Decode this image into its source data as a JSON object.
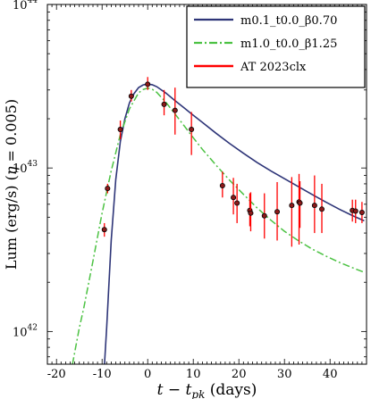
{
  "chart_data": {
    "type": "scatter",
    "xlabel": "t − t_pk (days)",
    "ylabel": "Lum (erg/s) (η = 0.005)",
    "xlim": [
      -22,
      48
    ],
    "ylim_log10": [
      41.8,
      44.0
    ],
    "log_y": true,
    "x_ticks": [
      -20,
      -10,
      0,
      10,
      20,
      30,
      40
    ],
    "y_ticks": [
      {
        "exp": 42,
        "label": "10",
        "sup": "42"
      },
      {
        "exp": 43,
        "label": "10",
        "sup": "43"
      },
      {
        "exp": 44,
        "label": "10",
        "sup": "44"
      }
    ],
    "legend_position": "top-right",
    "series": [
      {
        "name": "m0.1_t0.0_β0.70",
        "kind": "line",
        "style": "solid",
        "color": "#2e3578",
        "x": [
          -9.6,
          -9.0,
          -8.0,
          -7.0,
          -6.0,
          -5.0,
          -4.0,
          -3.0,
          -2.0,
          -1.0,
          0.0,
          1.0,
          2.0,
          4.0,
          6.0,
          8.0,
          10.0,
          12.0,
          15.0,
          18.0,
          21.0,
          24.0,
          27.0,
          30.0,
          33.0,
          36.0,
          39.0,
          42.0,
          45.0,
          47.5
        ],
        "y": [
          5.5e+41,
          1.05e+42,
          3.6e+42,
          8.5e+42,
          1.45e+43,
          2e+43,
          2.5e+43,
          2.85e+43,
          3.1e+43,
          3.22e+43,
          3.26e+43,
          3.23e+43,
          3.14e+43,
          2.87e+43,
          2.58e+43,
          2.33e+43,
          2.1e+43,
          1.9e+43,
          1.63e+43,
          1.41e+43,
          1.23e+43,
          1.08e+43,
          9.6e+42,
          8.6e+42,
          7.7e+42,
          6.9e+42,
          6.2e+42,
          5.6e+42,
          5.1e+42,
          4.75e+42
        ]
      },
      {
        "name": "m1.0_t0.0_β1.25",
        "kind": "line",
        "style": "dashdot",
        "color": "#4cc243",
        "x": [
          -16.5,
          -15.0,
          -14.0,
          -12.0,
          -10.0,
          -8.0,
          -6.0,
          -4.0,
          -2.0,
          -1.0,
          0.0,
          1.0,
          2.0,
          4.0,
          6.0,
          8.0,
          10.0,
          12.0,
          15.0,
          18.0,
          21.0,
          24.0,
          27.0,
          30.0,
          33.0,
          36.0,
          39.0,
          42.0,
          45.0,
          47.5
        ],
        "y": [
          6.3e+41,
          1.05e+42,
          1.4e+42,
          2.7e+42,
          5.3e+42,
          9.6e+42,
          1.6e+43,
          2.3e+43,
          2.88e+43,
          3.02e+43,
          3.08e+43,
          3.03e+43,
          2.9e+43,
          2.52e+43,
          2.14e+43,
          1.81e+43,
          1.53e+43,
          1.3e+43,
          1.04e+43,
          8.4e+42,
          6.9e+42,
          5.7e+42,
          4.8e+42,
          4.1e+42,
          3.6e+42,
          3.2e+42,
          2.9e+42,
          2.65e+42,
          2.45e+42,
          2.3e+42
        ]
      },
      {
        "name": "AT 2023clx",
        "kind": "points",
        "color": "#ff0000",
        "marker_color": "#8b1a1a",
        "points": [
          {
            "x": -9.5,
            "y": 4.2e+42,
            "lo": 3.8e+42,
            "hi": 4.6e+42
          },
          {
            "x": -8.8,
            "y": 7.5e+42,
            "lo": 7e+42,
            "hi": 8e+42
          },
          {
            "x": -6.0,
            "y": 1.72e+43,
            "lo": 1.5e+43,
            "hi": 1.95e+43
          },
          {
            "x": -3.6,
            "y": 2.75e+43,
            "lo": 2.55e+43,
            "hi": 3e+43
          },
          {
            "x": 0.0,
            "y": 3.25e+43,
            "lo": 3e+43,
            "hi": 3.6e+43
          },
          {
            "x": 3.6,
            "y": 2.45e+43,
            "lo": 2.1e+43,
            "hi": 3e+43
          },
          {
            "x": 6.0,
            "y": 2.25e+43,
            "lo": 1.6e+43,
            "hi": 3.1e+43
          },
          {
            "x": 9.6,
            "y": 1.72e+43,
            "lo": 1.2e+43,
            "hi": 2.2e+43
          },
          {
            "x": 16.4,
            "y": 7.8e+42,
            "lo": 6.6e+42,
            "hi": 9.5e+42
          },
          {
            "x": 18.8,
            "y": 6.6e+42,
            "lo": 5.2e+42,
            "hi": 8.7e+42
          },
          {
            "x": 19.6,
            "y": 6.1e+42,
            "lo": 4.6e+42,
            "hi": 8e+42
          },
          {
            "x": 22.4,
            "y": 5.5e+42,
            "lo": 4.4e+42,
            "hi": 7e+42
          },
          {
            "x": 22.6,
            "y": 5.3e+42,
            "lo": 4.1e+42,
            "hi": 7.1e+42
          },
          {
            "x": 25.6,
            "y": 5.1e+42,
            "lo": 3.7e+42,
            "hi": 7e+42
          },
          {
            "x": 28.4,
            "y": 5.4e+42,
            "lo": 3.6e+42,
            "hi": 8.2e+42
          },
          {
            "x": 31.6,
            "y": 5.9e+42,
            "lo": 3.3e+42,
            "hi": 8.8e+42
          },
          {
            "x": 33.2,
            "y": 6.2e+42,
            "lo": 3.4e+42,
            "hi": 9.2e+42
          },
          {
            "x": 33.4,
            "y": 6.1e+42,
            "lo": 4.3e+42,
            "hi": 8.3e+42
          },
          {
            "x": 36.6,
            "y": 5.9e+42,
            "lo": 4e+42,
            "hi": 9e+42
          },
          {
            "x": 38.2,
            "y": 5.6e+42,
            "lo": 4e+42,
            "hi": 8e+42
          },
          {
            "x": 44.9,
            "y": 5.5e+42,
            "lo": 4.7e+42,
            "hi": 6.4e+42
          },
          {
            "x": 45.6,
            "y": 5.45e+42,
            "lo": 4.6e+42,
            "hi": 6.4e+42
          },
          {
            "x": 47.0,
            "y": 5.35e+42,
            "lo": 4.6e+42,
            "hi": 6.2e+42
          }
        ]
      }
    ]
  }
}
